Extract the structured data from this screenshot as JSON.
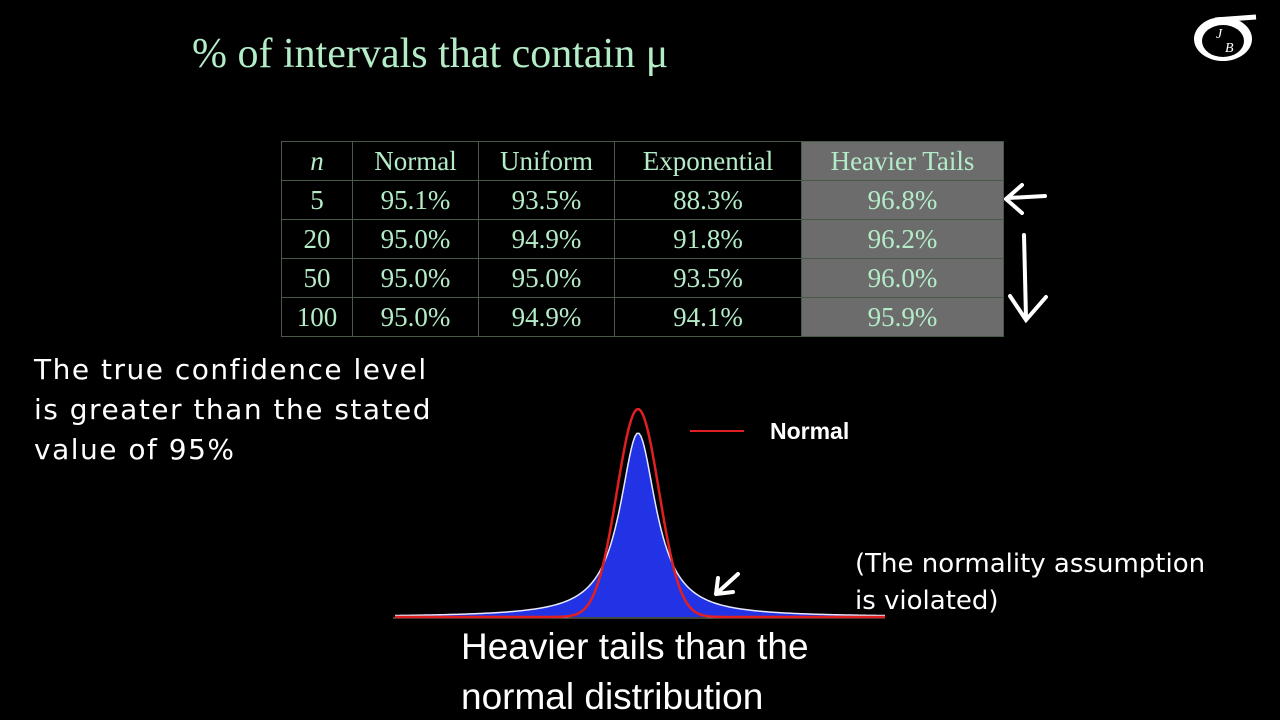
{
  "title": "% of intervals that contain μ",
  "logo": {
    "letters": [
      "J",
      "B"
    ]
  },
  "table": {
    "header": [
      "n",
      "Normal",
      "Uniform",
      "Exponential",
      "Heavier Tails"
    ],
    "rows": [
      [
        "5",
        "95.1%",
        "93.5%",
        "88.3%",
        "96.8%"
      ],
      [
        "20",
        "95.0%",
        "94.9%",
        "91.8%",
        "96.2%"
      ],
      [
        "50",
        "95.0%",
        "95.0%",
        "93.5%",
        "96.0%"
      ],
      [
        "100",
        "95.0%",
        "94.9%",
        "94.1%",
        "95.9%"
      ]
    ]
  },
  "note": {
    "lines": [
      "The true confidence level",
      "is greater than the stated",
      "value of 95%"
    ]
  },
  "figure": {
    "legend": "Normal"
  },
  "aside": {
    "lines": [
      "(The normality assumption",
      "is violated)"
    ]
  },
  "caption": {
    "lines": [
      "Heavier tails than the",
      "normal distribution"
    ]
  }
}
